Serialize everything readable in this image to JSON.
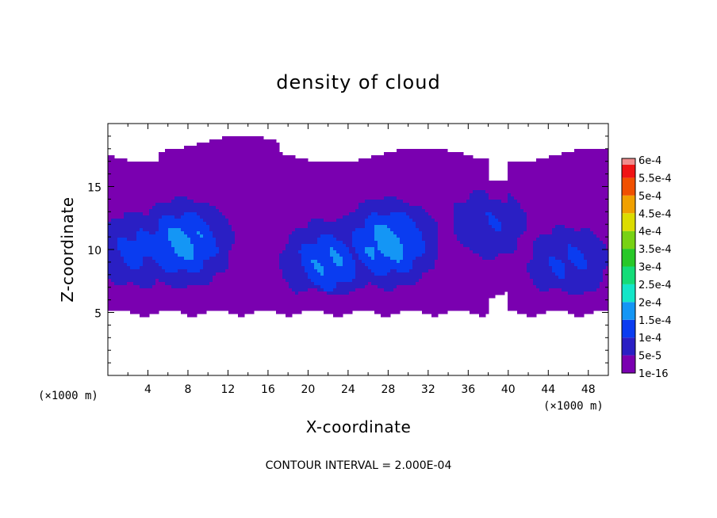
{
  "chart_data": {
    "type": "heatmap",
    "title": "density of cloud",
    "xlabel": "X-coordinate",
    "ylabel": "Z-coordinate",
    "x_unit": "(×1000 m)",
    "y_unit": "(×1000 m)",
    "xlim": [
      0,
      50
    ],
    "ylim": [
      0,
      20
    ],
    "x_ticks": [
      4,
      8,
      12,
      16,
      20,
      24,
      28,
      32,
      36,
      40,
      44,
      48
    ],
    "x_tick_labels": [
      "4",
      "8",
      "12",
      "16",
      "20",
      "24",
      "28",
      "32",
      "36",
      "40",
      "44",
      "48"
    ],
    "y_ticks": [
      5,
      10,
      15
    ],
    "y_tick_labels": [
      "5",
      "10",
      "15"
    ],
    "footer": "CONTOUR INTERVAL = 2.000E-04",
    "legend": {
      "position": "right",
      "levels": [
        {
          "label": "1e-16",
          "color": "#7a00b0"
        },
        {
          "label": "5e-5",
          "color": "#2a1fc4"
        },
        {
          "label": "1e-4",
          "color": "#0a3cf0"
        },
        {
          "label": "1.5e-4",
          "color": "#1496f5"
        },
        {
          "label": "2e-4",
          "color": "#14e6c8"
        },
        {
          "label": "2.5e-4",
          "color": "#14dc78"
        },
        {
          "label": "3e-4",
          "color": "#28c828"
        },
        {
          "label": "3.5e-4",
          "color": "#78d214"
        },
        {
          "label": "4e-4",
          "color": "#dcdc00"
        },
        {
          "label": "4.5e-4",
          "color": "#f0a000"
        },
        {
          "label": "5e-4",
          "color": "#f05000"
        },
        {
          "label": "5.5e-4",
          "color": "#f01414"
        },
        {
          "label": "6e-4",
          "color": "#f08c8c"
        }
      ]
    },
    "field": {
      "cloud_base_z": 5,
      "cloud_top_z": 17.5,
      "peak_density": 0.0002,
      "cores": [
        {
          "x": 7.5,
          "z": 10.5,
          "density": 0.00019
        },
        {
          "x": 28,
          "z": 10.5,
          "density": 0.0002
        },
        {
          "x": 22,
          "z": 9,
          "density": 0.00017
        },
        {
          "x": 3,
          "z": 10,
          "density": 0.00013
        },
        {
          "x": 46,
          "z": 9,
          "density": 0.00012
        },
        {
          "x": 38,
          "z": 12,
          "density": 0.00011
        }
      ]
    }
  }
}
